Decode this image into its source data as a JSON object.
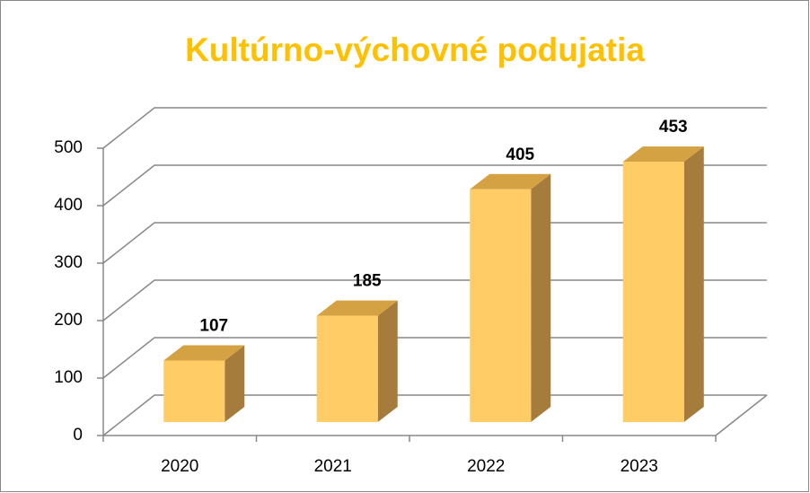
{
  "chart_data": {
    "type": "bar",
    "title": "Kultúrno-výchovné podujatia",
    "categories": [
      "2020",
      "2021",
      "2022",
      "2023"
    ],
    "values": [
      107,
      185,
      405,
      453
    ],
    "color": "#FFCC66",
    "ylim": [
      0,
      500
    ],
    "yticks": [
      0,
      100,
      200,
      300,
      400,
      500
    ],
    "grid": true
  }
}
